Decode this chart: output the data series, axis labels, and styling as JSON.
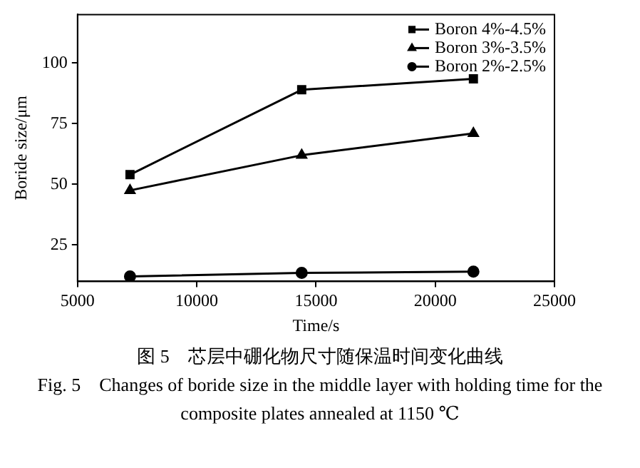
{
  "chart_data": {
    "type": "line",
    "xlabel": "Time/s",
    "ylabel": "Boride size/μm",
    "x": [
      7200,
      14400,
      21600
    ],
    "series": [
      {
        "name": "Boron 4%-4.5%",
        "color": "#000000",
        "values": [
          54,
          89,
          93.5
        ],
        "marker": "square"
      },
      {
        "name": "Boron 3%-3.5%",
        "color": "#000000",
        "values": [
          47.5,
          62,
          71
        ],
        "marker": "triangle"
      },
      {
        "name": "Boron 2%-2.5%",
        "color": "#000000",
        "values": [
          12,
          13.5,
          14
        ],
        "marker": "circle"
      }
    ],
    "xlim": [
      5000,
      25000
    ],
    "xticks": [
      5000,
      10000,
      15000,
      20000,
      25000
    ],
    "ylim": [
      10,
      120
    ],
    "yticks": [
      25,
      50,
      75,
      100
    ],
    "grid": false,
    "legend": "top right",
    "line_style": "solid",
    "annotations": [
      "图 5　芯层中硼化物尺寸随保温时间变化曲线",
      "Fig. 5　Changes of boride size in the middle layer with holding time for the composite plates annealed at 1150 ℃"
    ]
  }
}
